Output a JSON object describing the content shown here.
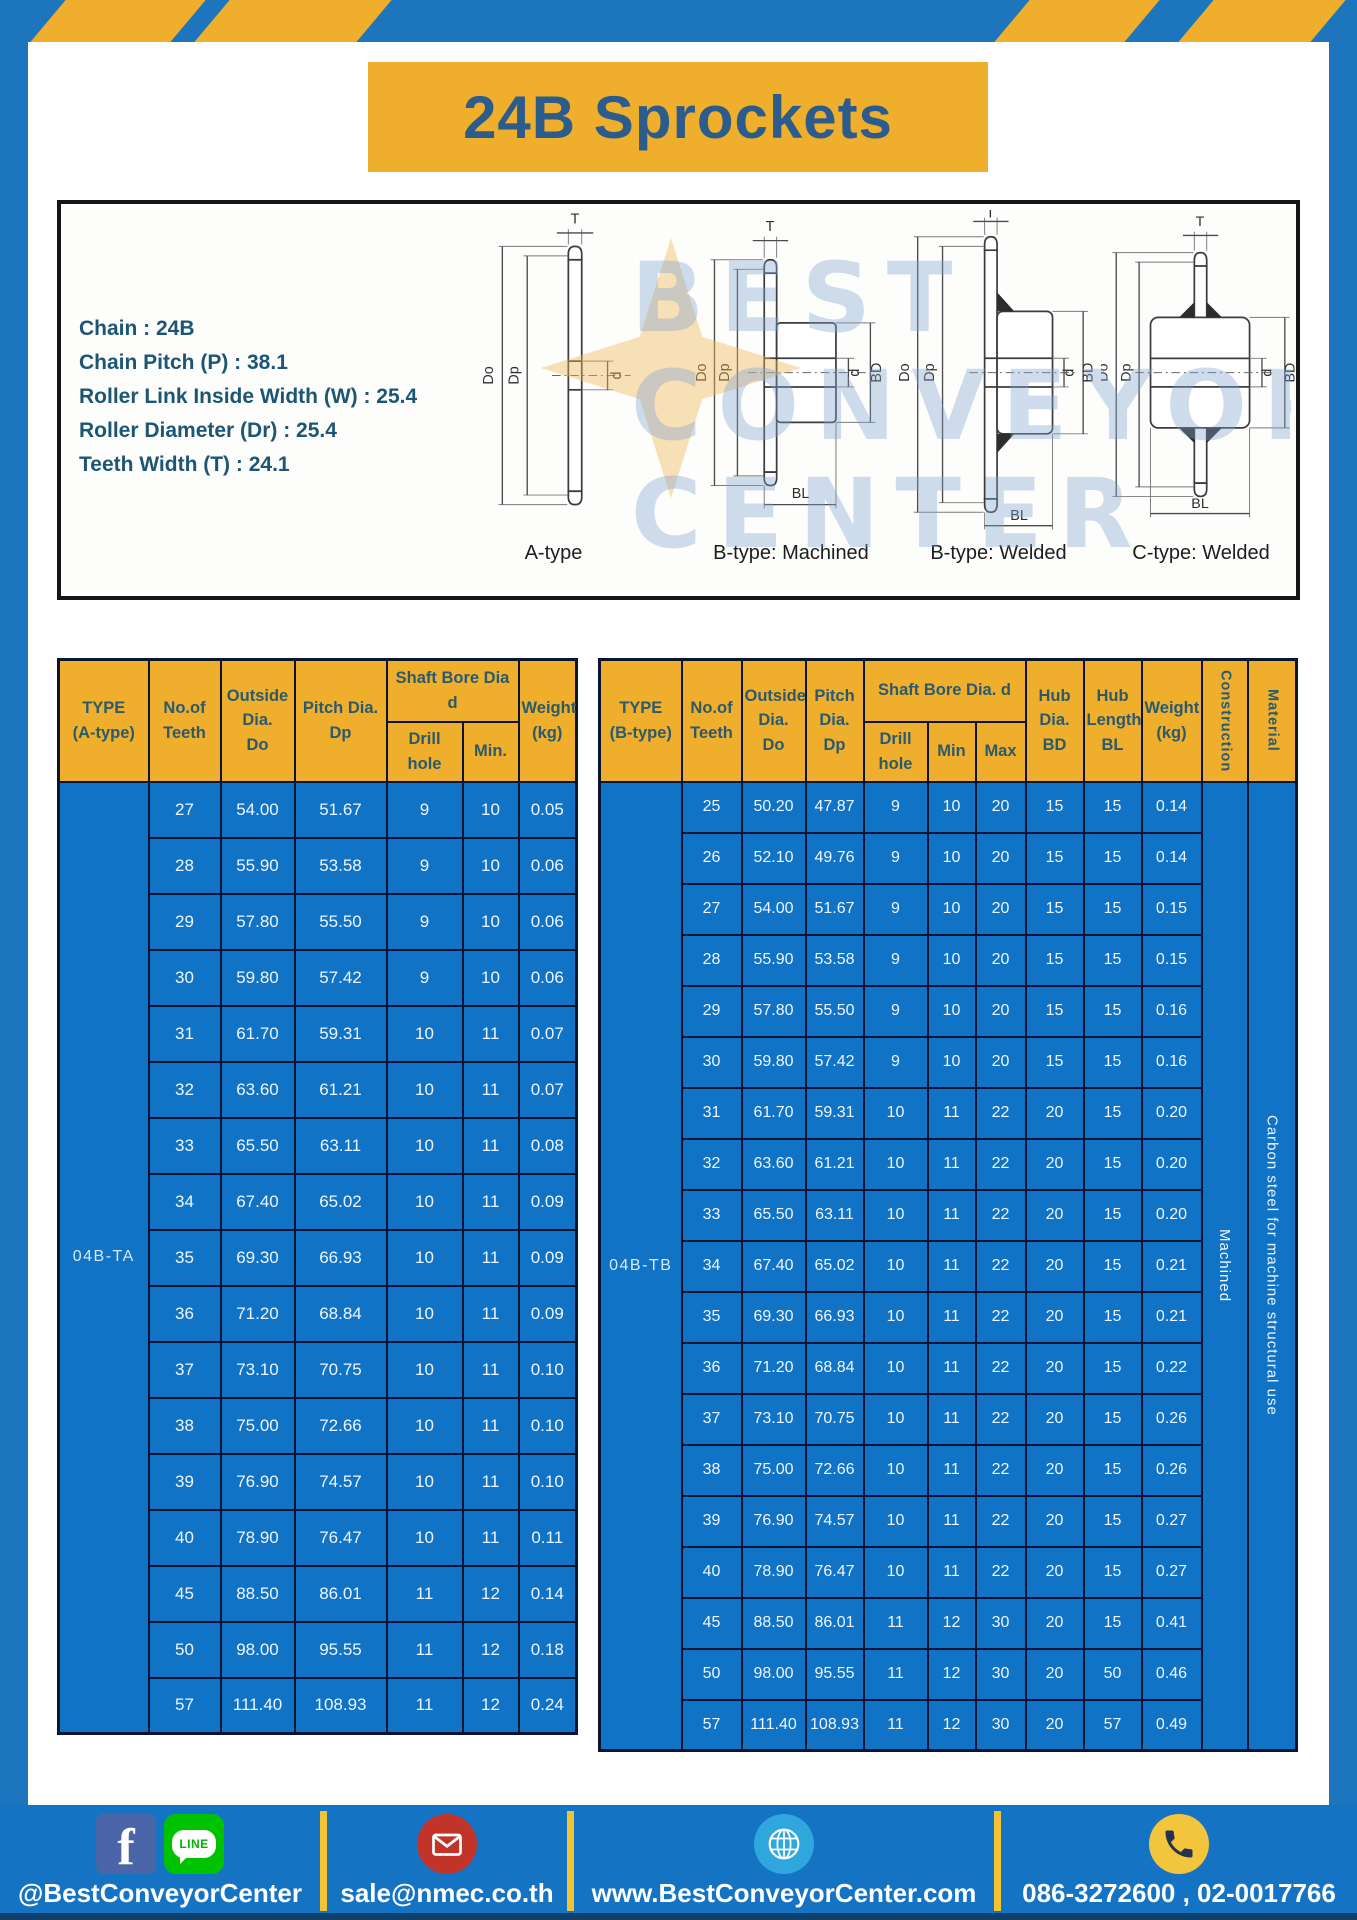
{
  "page": {
    "title": "24B Sprockets"
  },
  "specs": {
    "lines": [
      "Chain : 24B",
      "Chain Pitch (P) : 38.1",
      "Roller Link Inside Width (W) : 25.4",
      "Roller Diameter (Dr) : 25.4",
      "Teeth Width (T) : 24.1"
    ]
  },
  "diagram": {
    "types": [
      "A-type",
      "B-type: Machined",
      "B-type: Welded",
      "C-type: Welded"
    ],
    "dims": {
      "t": "T",
      "do": "Do",
      "dp": "Dp",
      "d": "d",
      "bd": "BD",
      "bl": "BL"
    }
  },
  "watermark": {
    "lines": [
      "BEST",
      "CONVEYOR",
      "CENTER"
    ]
  },
  "table_a": {
    "headers": {
      "type": "TYPE\n(A-type)",
      "teeth": "No.of\nTeeth",
      "outside": "Outside\nDia.\nDo",
      "pitch": "Pitch Dia.\nDp",
      "shaft_bore": "Shaft Bore Dia d",
      "drill": "Drill hole",
      "min": "Min.",
      "weight": "Weight\n(kg)"
    },
    "type_value": "04B-TA",
    "rows": [
      [
        "27",
        "54.00",
        "51.67",
        "9",
        "10",
        "0.05"
      ],
      [
        "28",
        "55.90",
        "53.58",
        "9",
        "10",
        "0.06"
      ],
      [
        "29",
        "57.80",
        "55.50",
        "9",
        "10",
        "0.06"
      ],
      [
        "30",
        "59.80",
        "57.42",
        "9",
        "10",
        "0.06"
      ],
      [
        "31",
        "61.70",
        "59.31",
        "10",
        "11",
        "0.07"
      ],
      [
        "32",
        "63.60",
        "61.21",
        "10",
        "11",
        "0.07"
      ],
      [
        "33",
        "65.50",
        "63.11",
        "10",
        "11",
        "0.08"
      ],
      [
        "34",
        "67.40",
        "65.02",
        "10",
        "11",
        "0.09"
      ],
      [
        "35",
        "69.30",
        "66.93",
        "10",
        "11",
        "0.09"
      ],
      [
        "36",
        "71.20",
        "68.84",
        "10",
        "11",
        "0.09"
      ],
      [
        "37",
        "73.10",
        "70.75",
        "10",
        "11",
        "0.10"
      ],
      [
        "38",
        "75.00",
        "72.66",
        "10",
        "11",
        "0.10"
      ],
      [
        "39",
        "76.90",
        "74.57",
        "10",
        "11",
        "0.10"
      ],
      [
        "40",
        "78.90",
        "76.47",
        "10",
        "11",
        "0.11"
      ],
      [
        "45",
        "88.50",
        "86.01",
        "11",
        "12",
        "0.14"
      ],
      [
        "50",
        "98.00",
        "95.55",
        "11",
        "12",
        "0.18"
      ],
      [
        "57",
        "111.40",
        "108.93",
        "11",
        "12",
        "0.24"
      ]
    ]
  },
  "table_b": {
    "headers": {
      "type": "TYPE\n(B-type)",
      "teeth": "No.of\nTeeth",
      "outside": "Outside\nDia.\nDo",
      "pitch": "Pitch\nDia.\nDp",
      "shaft_bore": "Shaft Bore Dia. d",
      "drill": "Drill hole",
      "min": "Min",
      "max": "Max",
      "hub_dia": "Hub\nDia.\nBD",
      "hub_len": "Hub\nLength\nBL",
      "weight": "Weight\n(kg)",
      "construction": "Construction",
      "material": "Material"
    },
    "type_value": "04B-TB",
    "construction_value": "Machined",
    "material_value": "Carbon steel for machine structural use",
    "rows": [
      [
        "25",
        "50.20",
        "47.87",
        "9",
        "10",
        "20",
        "15",
        "15",
        "0.14"
      ],
      [
        "26",
        "52.10",
        "49.76",
        "9",
        "10",
        "20",
        "15",
        "15",
        "0.14"
      ],
      [
        "27",
        "54.00",
        "51.67",
        "9",
        "10",
        "20",
        "15",
        "15",
        "0.15"
      ],
      [
        "28",
        "55.90",
        "53.58",
        "9",
        "10",
        "20",
        "15",
        "15",
        "0.15"
      ],
      [
        "29",
        "57.80",
        "55.50",
        "9",
        "10",
        "20",
        "15",
        "15",
        "0.16"
      ],
      [
        "30",
        "59.80",
        "57.42",
        "9",
        "10",
        "20",
        "15",
        "15",
        "0.16"
      ],
      [
        "31",
        "61.70",
        "59.31",
        "10",
        "11",
        "22",
        "20",
        "15",
        "0.20"
      ],
      [
        "32",
        "63.60",
        "61.21",
        "10",
        "11",
        "22",
        "20",
        "15",
        "0.20"
      ],
      [
        "33",
        "65.50",
        "63.11",
        "10",
        "11",
        "22",
        "20",
        "15",
        "0.20"
      ],
      [
        "34",
        "67.40",
        "65.02",
        "10",
        "11",
        "22",
        "20",
        "15",
        "0.21"
      ],
      [
        "35",
        "69.30",
        "66.93",
        "10",
        "11",
        "22",
        "20",
        "15",
        "0.21"
      ],
      [
        "36",
        "71.20",
        "68.84",
        "10",
        "11",
        "22",
        "20",
        "15",
        "0.22"
      ],
      [
        "37",
        "73.10",
        "70.75",
        "10",
        "11",
        "22",
        "20",
        "15",
        "0.26"
      ],
      [
        "38",
        "75.00",
        "72.66",
        "10",
        "11",
        "22",
        "20",
        "15",
        "0.26"
      ],
      [
        "39",
        "76.90",
        "74.57",
        "10",
        "11",
        "22",
        "20",
        "15",
        "0.27"
      ],
      [
        "40",
        "78.90",
        "76.47",
        "10",
        "11",
        "22",
        "20",
        "15",
        "0.27"
      ],
      [
        "45",
        "88.50",
        "86.01",
        "11",
        "12",
        "30",
        "20",
        "15",
        "0.41"
      ],
      [
        "50",
        "98.00",
        "95.55",
        "11",
        "12",
        "30",
        "20",
        "50",
        "0.46"
      ],
      [
        "57",
        "111.40",
        "108.93",
        "11",
        "12",
        "30",
        "20",
        "57",
        "0.49"
      ]
    ]
  },
  "footer": {
    "facebook_f": "f",
    "line_label": "LINE",
    "facebook_handle": "@BestConveyorCenter",
    "email": "sale@nmec.co.th",
    "website": "www.BestConveyorCenter.com",
    "phones": "086-3272600 , 02-0017766"
  },
  "colors": {
    "frame_blue": "#1d76bd",
    "cell_blue": "#1173c6",
    "header_yellow": "#efae2b",
    "table_border": "#0b1430",
    "title_text": "#2b5c8c",
    "spec_text": "#1d5674",
    "footer_blue": "#1573c4",
    "divider_yellow": "#f2c433"
  }
}
